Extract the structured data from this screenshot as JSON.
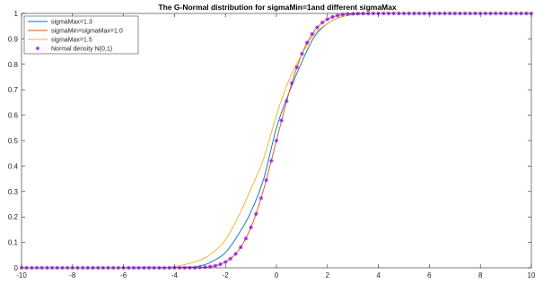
{
  "chart_data": {
    "type": "line",
    "title": "The G-Normal distribution for sigmaMin=1and different sigmaMax",
    "xlabel": "",
    "ylabel": "",
    "xlim": [
      -10,
      10
    ],
    "ylim": [
      0,
      1
    ],
    "x_ticks": [
      "-10",
      "-8",
      "-6",
      "-4",
      "-2",
      "0",
      "2",
      "4",
      "6",
      "8",
      "10"
    ],
    "y_ticks": [
      "0",
      "0.1",
      "0.2",
      "0.3",
      "0.4",
      "0.5",
      "0.6",
      "0.7",
      "0.8",
      "0.9",
      "1"
    ],
    "grid": false,
    "legend_position": "top-left",
    "series": [
      {
        "name": "sigmaMax=1.3",
        "color": "#0072BD",
        "style": "line",
        "x": [
          -10,
          -4,
          -3,
          -2.5,
          -2,
          -1.5,
          -1,
          -0.5,
          0,
          0.5,
          1,
          1.5,
          2,
          2.5,
          3,
          4,
          10
        ],
        "values": [
          0,
          0.001,
          0.008,
          0.026,
          0.06,
          0.13,
          0.22,
          0.35,
          0.55,
          0.69,
          0.81,
          0.91,
          0.96,
          0.985,
          0.995,
          1,
          1
        ]
      },
      {
        "name": "sigmaMin=sigmaMax=1.0",
        "color": "#D95319",
        "style": "line",
        "x": [
          -10,
          -4,
          -3,
          -2.5,
          -2,
          -1.5,
          -1,
          -0.5,
          0,
          0.5,
          1,
          1.5,
          2,
          2.5,
          3,
          4,
          10
        ],
        "values": [
          0,
          0,
          0.001,
          0.006,
          0.023,
          0.067,
          0.159,
          0.309,
          0.5,
          0.691,
          0.841,
          0.933,
          0.977,
          0.994,
          0.999,
          1,
          1
        ]
      },
      {
        "name": "sigmaMax=1.5",
        "color": "#EDB120",
        "style": "line",
        "x": [
          -10,
          -5,
          -4,
          -3,
          -2.5,
          -2,
          -1.5,
          -1,
          -0.5,
          0,
          0.5,
          1,
          1.5,
          2,
          2.5,
          3,
          4,
          10
        ],
        "values": [
          0,
          0.001,
          0.005,
          0.03,
          0.06,
          0.11,
          0.2,
          0.31,
          0.43,
          0.6,
          0.74,
          0.84,
          0.92,
          0.96,
          0.985,
          0.995,
          1,
          1
        ]
      },
      {
        "name": "Normal density N(0,1)",
        "color": "#A020F0",
        "style": "markers",
        "marker": "*",
        "x_range": [
          -10,
          10
        ],
        "x_step": 0.2
      }
    ]
  }
}
